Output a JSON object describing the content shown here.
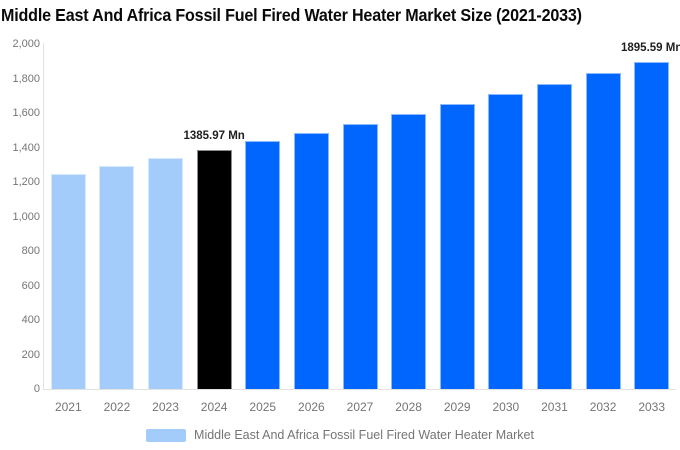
{
  "header": {
    "title": "Middle East And Africa Fossil Fuel Fired Water Heater Market Size (2021-2033)"
  },
  "legend": {
    "label": "Middle East And Africa Fossil Fuel Fired Water Heater Market"
  },
  "chart_data": {
    "type": "bar",
    "title": "Middle East And Africa Fossil Fuel Fired Water Heater Market Size (2021-2033)",
    "xlabel": "",
    "ylabel": "",
    "unit": "Mn",
    "categories": [
      "2021",
      "2022",
      "2023",
      "2024",
      "2025",
      "2026",
      "2027",
      "2028",
      "2029",
      "2030",
      "2031",
      "2032",
      "2033"
    ],
    "series": [
      {
        "name": "Middle East And Africa Fossil Fuel Fired Water Heater Market",
        "values": [
          1248.6,
          1292.81,
          1338.58,
          1385.97,
          1435.04,
          1485.85,
          1538.46,
          1592.93,
          1649.33,
          1707.73,
          1768.19,
          1830.8,
          1895.59
        ]
      }
    ],
    "ylim": [
      0,
      2000
    ],
    "ytick_step": 200,
    "ytick_labels": [
      "0",
      "200",
      "400",
      "600",
      "800",
      "1,000",
      "1,200",
      "1,400",
      "1,600",
      "1,800",
      "2,000"
    ],
    "grid": false,
    "legend_position": "bottom",
    "data_labels": [
      {
        "category": "2024",
        "text": "1385.97 Mn"
      },
      {
        "category": "2033",
        "text": "1895.59 Mn"
      }
    ],
    "bar_colors": [
      "#A3CCFA",
      "#A3CCFA",
      "#A3CCFA",
      "#000000",
      "#0066FE",
      "#0066FE",
      "#0066FE",
      "#0066FE",
      "#0066FE",
      "#0066FE",
      "#0066FE",
      "#0066FE",
      "#0066FE"
    ],
    "colors": {
      "historical": "#A3CCFA",
      "base_year": "#000000",
      "forecast": "#0066FE",
      "axis_text": "#757575",
      "axis_line": "#E2E2E2",
      "value_label_text": "#1F1F1F"
    }
  }
}
